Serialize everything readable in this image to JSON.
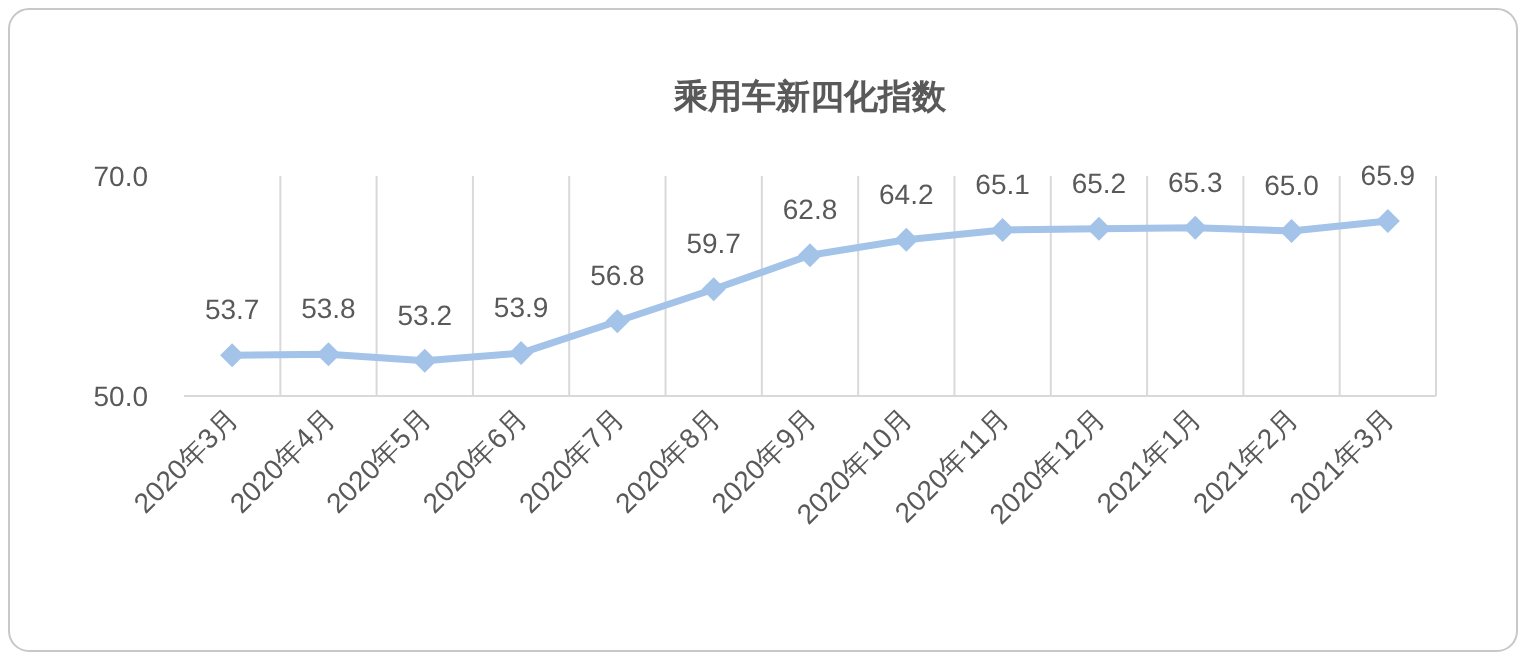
{
  "chart_data": {
    "type": "line",
    "title": "乘用车新四化指数",
    "categories": [
      "2020年3月",
      "2020年4月",
      "2020年5月",
      "2020年6月",
      "2020年7月",
      "2020年8月",
      "2020年9月",
      "2020年10月",
      "2020年11月",
      "2020年12月",
      "2021年1月",
      "2021年2月",
      "2021年3月"
    ],
    "series": [
      {
        "color": "#a3c3e8",
        "values": [
          53.7,
          53.8,
          53.2,
          53.9,
          56.8,
          59.7,
          62.8,
          64.2,
          65.1,
          65.2,
          65.3,
          65.0,
          65.9
        ],
        "value_labels": [
          "53.7",
          "53.8",
          "53.2",
          "53.9",
          "56.8",
          "59.7",
          "62.8",
          "64.2",
          "65.1",
          "65.2",
          "65.3",
          "65.0",
          "65.9"
        ]
      }
    ],
    "ylim": [
      50,
      70
    ],
    "yticks": [
      {
        "value": 50,
        "label": "50.0"
      },
      {
        "value": 70,
        "label": "70.0"
      }
    ],
    "grid": "x",
    "marker": "diamond",
    "line_style": "solid"
  }
}
